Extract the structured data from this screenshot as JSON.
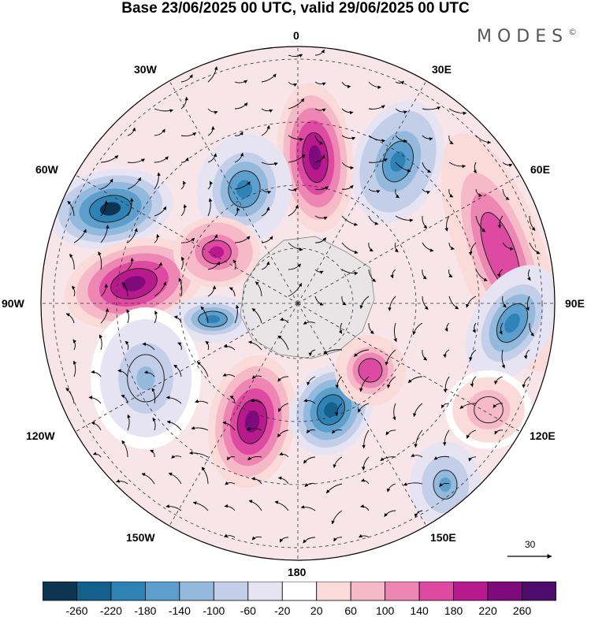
{
  "title": "Base 23/06/2025 00 UTC, valid 29/06/2025 00 UTC",
  "brand": {
    "text": "MODES",
    "mark": "©"
  },
  "longitude_labels": {
    "l0": "0",
    "l30e": "30E",
    "l60e": "60E",
    "l90e": "90E",
    "l120e": "120E",
    "l150e": "150E",
    "l180": "180",
    "l150w": "150W",
    "l120w": "120W",
    "l90w": "90W",
    "l60w": "60W",
    "l30w": "30W"
  },
  "reference_vector": {
    "label": "30"
  },
  "colorbar": {
    "levels": [
      "-260",
      "-220",
      "-180",
      "-140",
      "-100",
      "-60",
      "-20",
      "20",
      "60",
      "100",
      "140",
      "180",
      "220",
      "260"
    ],
    "colors": [
      "#0d3552",
      "#14608d",
      "#2f82b5",
      "#5d9fcc",
      "#93b9dc",
      "#c3cfe8",
      "#e6e4f2",
      "#ffffff",
      "#fadbd9",
      "#f6b9c7",
      "#ee86b4",
      "#de4aa2",
      "#b81a8e",
      "#7e0a7c",
      "#4d0c6c"
    ]
  },
  "map_data": {
    "projection": "polar stereographic, south pole centered",
    "field": "geopotential height anomaly with wind vectors",
    "anomalies": [
      {
        "name": "positive-60e-90e",
        "sign": "+",
        "peak": 180
      },
      {
        "name": "negative-30e",
        "sign": "-",
        "peak": -200
      },
      {
        "name": "positive-0",
        "sign": "+",
        "peak": 260
      },
      {
        "name": "negative-30w",
        "sign": "-",
        "peak": -180
      },
      {
        "name": "negative-60w",
        "sign": "-",
        "peak": -260
      },
      {
        "name": "positive-75w",
        "sign": "+",
        "peak": 240
      },
      {
        "name": "positive-45w",
        "sign": "+",
        "peak": 200
      },
      {
        "name": "negative-90w-inner",
        "sign": "-",
        "peak": -180
      },
      {
        "name": "positive-150w",
        "sign": "+",
        "peak": 260
      },
      {
        "name": "negative-165e",
        "sign": "-",
        "peak": -220
      },
      {
        "name": "positive-120e-inner",
        "sign": "+",
        "peak": 180
      },
      {
        "name": "negative-90e-outer",
        "sign": "-",
        "peak": -180
      },
      {
        "name": "negative-140e",
        "sign": "-",
        "peak": -140
      },
      {
        "name": "positive-120e-outer",
        "sign": "+",
        "peak": 100
      },
      {
        "name": "negative-105w",
        "sign": "-",
        "peak": -100
      }
    ]
  }
}
